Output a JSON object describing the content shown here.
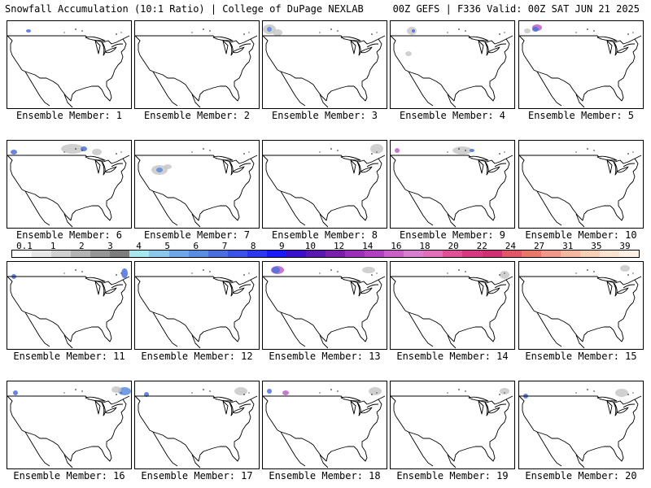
{
  "header": {
    "left": "Snowfall Accumulation (10:1 Ratio) | College of DuPage NEXLAB",
    "right": "00Z GEFS | F336 Valid: 00Z SAT JUN 21 2025"
  },
  "panels": [
    {
      "label": "Ensemble Member: 1"
    },
    {
      "label": "Ensemble Member: 2"
    },
    {
      "label": "Ensemble Member: 3"
    },
    {
      "label": "Ensemble Member: 4"
    },
    {
      "label": "Ensemble Member: 5"
    },
    {
      "label": "Ensemble Member: 6"
    },
    {
      "label": "Ensemble Member: 7"
    },
    {
      "label": "Ensemble Member: 8"
    },
    {
      "label": "Ensemble Member: 9"
    },
    {
      "label": "Ensemble Member: 10"
    },
    {
      "label": "Ensemble Member: 11"
    },
    {
      "label": "Ensemble Member: 12"
    },
    {
      "label": "Ensemble Member: 13"
    },
    {
      "label": "Ensemble Member: 14"
    },
    {
      "label": "Ensemble Member: 15"
    },
    {
      "label": "Ensemble Member: 16"
    },
    {
      "label": "Ensemble Member: 17"
    },
    {
      "label": "Ensemble Member: 18"
    },
    {
      "label": "Ensemble Member: 19"
    },
    {
      "label": "Ensemble Member: 20"
    }
  ],
  "colorbar": {
    "labels": [
      "0.1",
      "1",
      "2",
      "3",
      "4",
      "5",
      "6",
      "7",
      "8",
      "9",
      "10",
      "12",
      "14",
      "16",
      "18",
      "20",
      "22",
      "24",
      "27",
      "31",
      "35",
      "39"
    ],
    "colors": [
      "#ffffff",
      "#e8e8e8",
      "#d0d0d0",
      "#b4b4b4",
      "#969696",
      "#7d7d7d",
      "#a6e8f0",
      "#8cc8ee",
      "#6fa8e8",
      "#5a8ce0",
      "#4a6ee0",
      "#3a52e8",
      "#2a36f0",
      "#1a1af5",
      "#3a10c8",
      "#5a18b0",
      "#7a20a8",
      "#9a30b8",
      "#b040c0",
      "#c860c8",
      "#d880d0",
      "#e070b8",
      "#e05098",
      "#d83880",
      "#d03070",
      "#e05868",
      "#e87868",
      "#f09888",
      "#f4b8a0",
      "#f8d0b8",
      "#fce4d0",
      "#fff2e4"
    ]
  },
  "colors": {
    "light_snow": "#c8c8c8",
    "moderate_snow": "#4a6ee0",
    "heavy_snow": "#c060c8",
    "map_outline": "#000000"
  }
}
